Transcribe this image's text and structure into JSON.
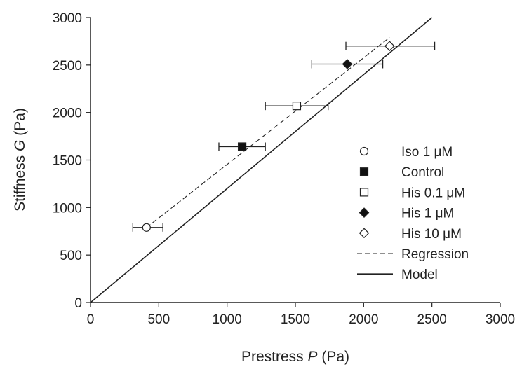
{
  "chart_data": {
    "type": "scatter",
    "xlabel": {
      "prefix": "Prestress ",
      "symbol": "P",
      "suffix": " (Pa)"
    },
    "ylabel": {
      "prefix": "Stiffness ",
      "symbol": "G",
      "suffix": " (Pa)"
    },
    "xlim": [
      0,
      3000
    ],
    "ylim": [
      0,
      3000
    ],
    "xticks": [
      "0",
      "500",
      "1000",
      "1500",
      "2000",
      "2500",
      "3000"
    ],
    "yticks": [
      "0",
      "500",
      "1000",
      "1500",
      "2000",
      "2500",
      "3000"
    ],
    "grid": false,
    "legend_position": "bottom-right",
    "series": [
      {
        "name": "Iso 1 μM",
        "marker": "circle-open",
        "x": 410,
        "y": 790,
        "xerr_low": 310,
        "xerr_high": 530
      },
      {
        "name": "Control",
        "marker": "square-filled",
        "x": 1110,
        "y": 1640,
        "xerr_low": 940,
        "xerr_high": 1280
      },
      {
        "name": "His 0.1 μM",
        "marker": "square-open",
        "x": 1510,
        "y": 2070,
        "xerr_low": 1280,
        "xerr_high": 1740
      },
      {
        "name": "His 1 μM",
        "marker": "diamond-filled",
        "x": 1880,
        "y": 2510,
        "xerr_low": 1620,
        "xerr_high": 2140
      },
      {
        "name": "His 10 μM",
        "marker": "diamond-open",
        "x": 2190,
        "y": 2700,
        "xerr_low": 1870,
        "xerr_high": 2520
      }
    ],
    "lines": [
      {
        "name": "Regression",
        "style": "dashed",
        "x": [
          410,
          2190
        ],
        "y": [
          790,
          2790
        ]
      },
      {
        "name": "Model",
        "style": "solid",
        "x": [
          0,
          2500
        ],
        "y": [
          0,
          3000
        ]
      }
    ]
  }
}
